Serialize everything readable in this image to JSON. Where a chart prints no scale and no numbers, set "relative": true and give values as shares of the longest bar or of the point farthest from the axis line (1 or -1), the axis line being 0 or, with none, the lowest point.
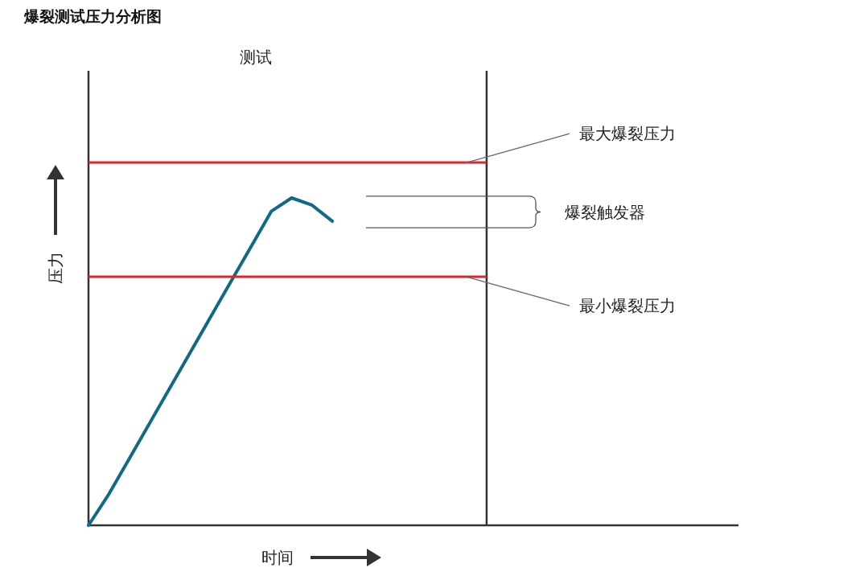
{
  "chart_data": {
    "type": "line",
    "title": "爆裂测试压力分析图",
    "xlabel": "时间",
    "ylabel": "压力",
    "relative": true,
    "categories": [
      null,
      null,
      null,
      null,
      null,
      null,
      null,
      null,
      null,
      null,
      null,
      null,
      null,
      null,
      null,
      null,
      null,
      null,
      null,
      null,
      null,
      null,
      null,
      null,
      null,
      null,
      null,
      null,
      null,
      null,
      null,
      null,
      null
    ],
    "series": [
      {
        "color": "#0e6a85",
        "values": [
          0,
          0.095,
          0.203,
          0.311,
          0.419,
          0.527,
          0.635,
          0.743,
          0.851,
          0.959,
          1.0,
          0.978,
          0.929,
          null,
          null,
          null,
          null,
          null,
          null,
          null,
          null,
          null,
          null,
          null,
          null,
          null,
          null,
          null,
          null,
          null,
          null,
          null,
          null
        ]
      }
    ],
    "ref_lines": [
      {
        "axis": "y",
        "value": 1.108,
        "label": "最大爆裂压力",
        "color": "#e0242a"
      },
      {
        "axis": "y",
        "value": 0.759,
        "label": "最小爆裂压力",
        "color": "#e0242a"
      },
      {
        "axis": "y",
        "value": 1.005,
        "color": "#555555"
      },
      {
        "axis": "y",
        "value": 0.909,
        "color": "#555555"
      }
    ],
    "annotations": [
      "测试",
      "爆裂触发器"
    ]
  }
}
